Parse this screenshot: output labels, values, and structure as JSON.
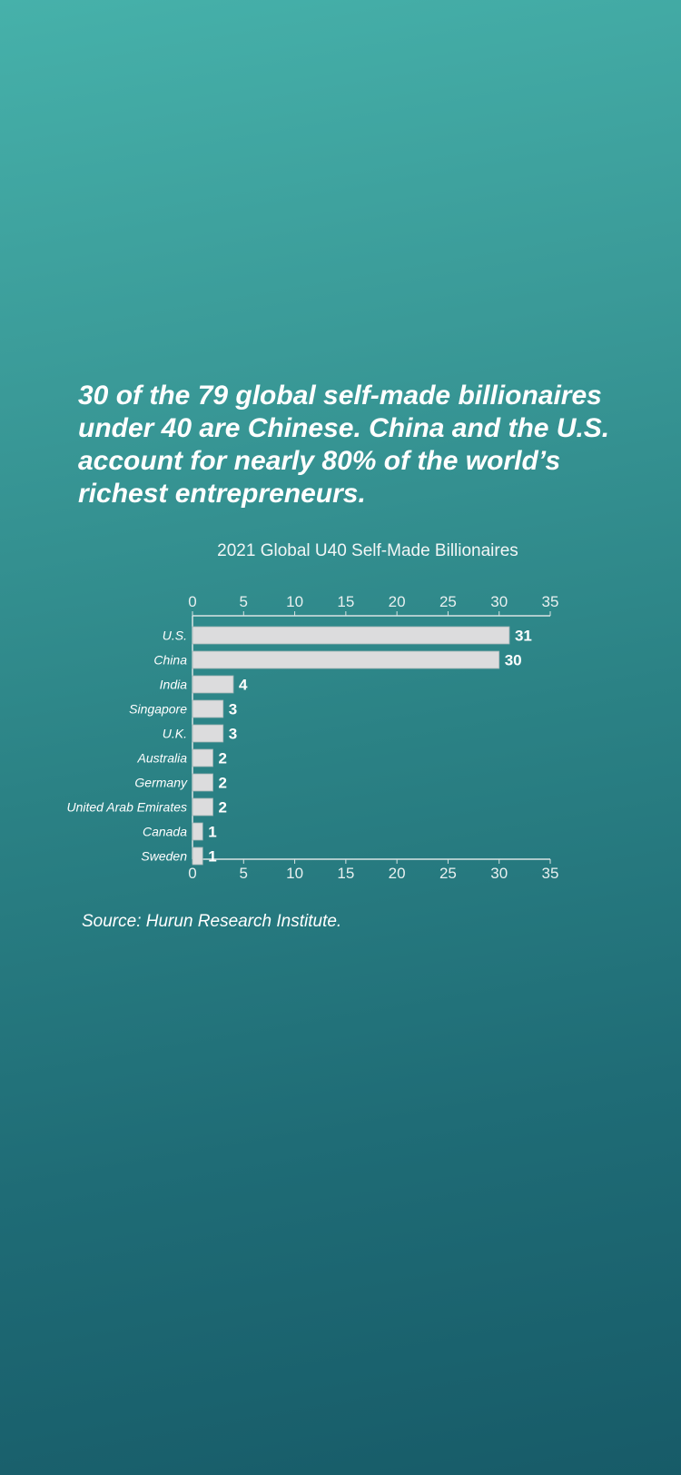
{
  "headline": "30 of the 79 global self-made billionaires under 40 are Chinese. China and the U.S. account for nearly 80% of the world’s richest entrepreneurs.",
  "source": "Source: Hurun Research Institute.",
  "colors": {
    "bar": "#dcdcdd",
    "axis": "#d9e4e4",
    "text": "#ffffff"
  },
  "chart_data": {
    "type": "bar",
    "orientation": "horizontal",
    "title": "2021 Global U40 Self-Made Billionaires",
    "categories": [
      "U.S.",
      "China",
      "India",
      "Singapore",
      "U.K.",
      "Australia",
      "Germany",
      "United Arab Emirates",
      "Canada",
      "Sweden"
    ],
    "values": [
      31,
      30,
      4,
      3,
      3,
      2,
      2,
      2,
      1,
      1
    ],
    "xlim": [
      0,
      35
    ],
    "xticks": [
      0,
      5,
      10,
      15,
      20,
      25,
      30,
      35
    ],
    "data_labels": true,
    "grid": false,
    "axis_ticks_on": [
      "top",
      "bottom"
    ]
  }
}
